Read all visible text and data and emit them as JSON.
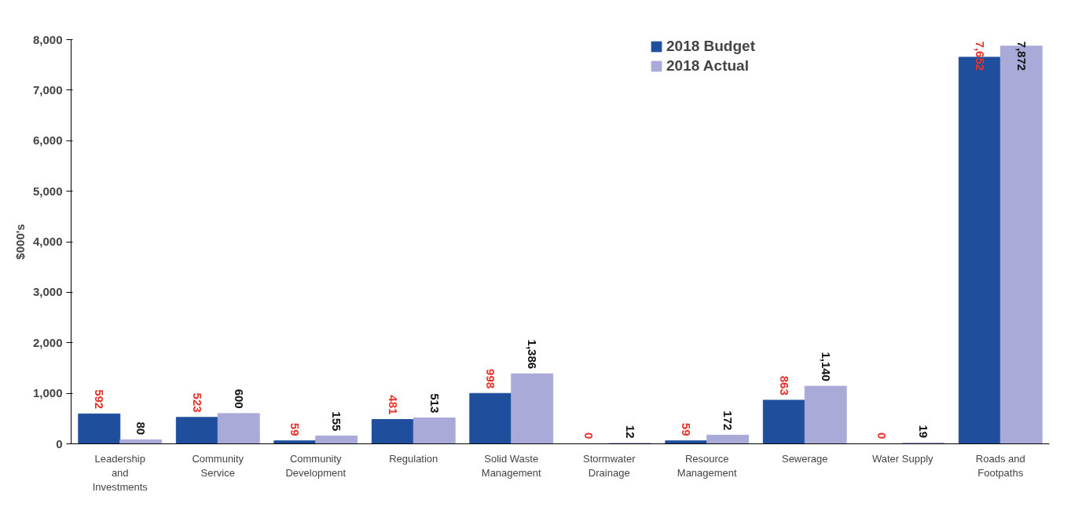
{
  "chart_data": {
    "type": "bar",
    "ylabel": "$000's",
    "categories": [
      "Leadership\nand\nInvestments",
      "Community\nService",
      "Community\nDevelopment",
      "Regulation",
      "Solid Waste\nManagement",
      "Stormwater\nDrainage",
      "Resource\nManagement",
      "Sewerage",
      "Water Supply",
      "Roads and\nFootpaths"
    ],
    "series": [
      {
        "name": "2018 Budget",
        "color": "#1f4e9c",
        "values": [
          592,
          523,
          59,
          481,
          998,
          0,
          59,
          863,
          0,
          7652
        ],
        "value_labels": [
          "592",
          "523",
          "59",
          "481",
          "998",
          "0",
          "59",
          "863",
          "0",
          "7,652"
        ]
      },
      {
        "name": "2018 Actual",
        "color": "#aaaad8",
        "values": [
          80,
          600,
          155,
          513,
          1386,
          12,
          172,
          1140,
          19,
          7872
        ],
        "value_labels": [
          "80",
          "600",
          "155",
          "513",
          "1,386",
          "12",
          "172",
          "1,140",
          "19",
          "7,872"
        ]
      }
    ],
    "ylim": [
      0,
      8000
    ],
    "yticks": [
      {
        "value": 0,
        "label": "0"
      },
      {
        "value": 1000,
        "label": "1,000"
      },
      {
        "value": 2000,
        "label": "2,000"
      },
      {
        "value": 3000,
        "label": "3,000"
      },
      {
        "value": 4000,
        "label": "4,000"
      },
      {
        "value": 5000,
        "label": "5,000"
      },
      {
        "value": 6000,
        "label": "6,000"
      },
      {
        "value": 7000,
        "label": "7,000"
      },
      {
        "value": 8000,
        "label": "8,000"
      }
    ],
    "legend": "top right",
    "grid": false
  }
}
